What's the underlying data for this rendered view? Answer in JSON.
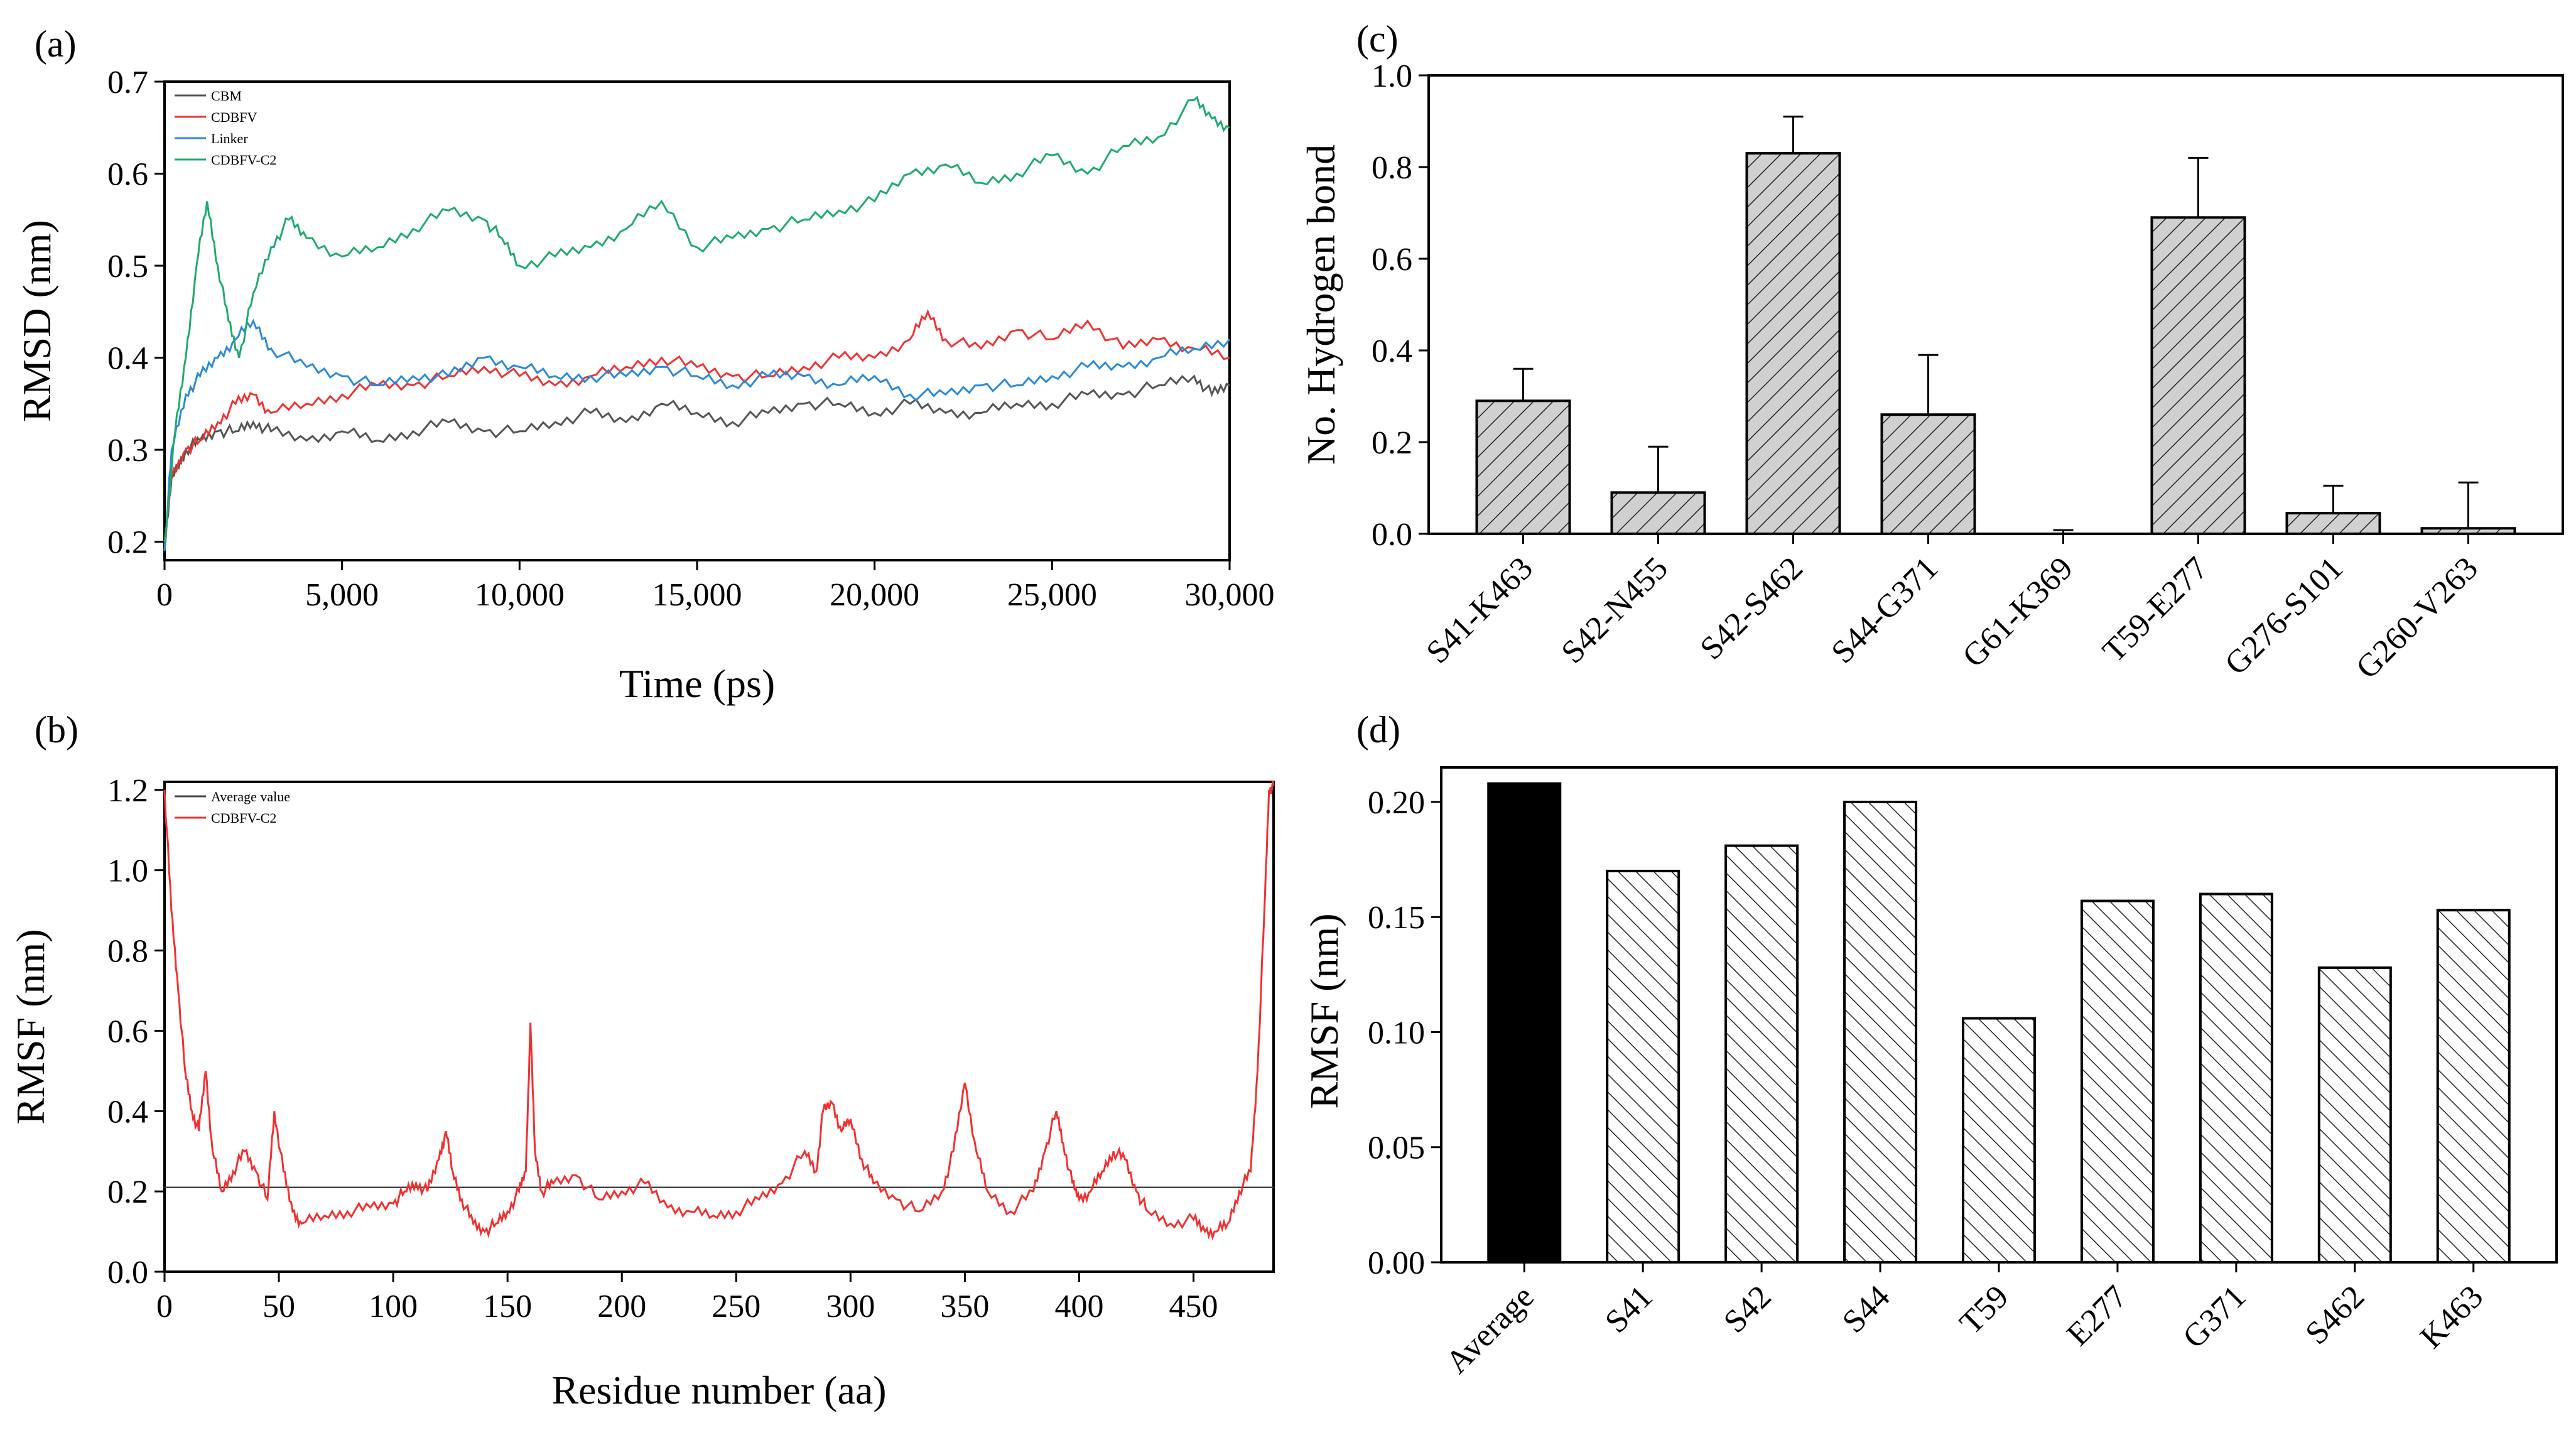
{
  "colors": {
    "cbm": "#555555",
    "cdbfv": "#ee3333",
    "linker": "#2a8ad8",
    "cdbfvc2": "#1faa6e",
    "avgline": "#444444",
    "rmsf": "#f03030",
    "black": "#000000"
  },
  "chart_data": [
    {
      "id": "a",
      "panel": "(a)",
      "type": "line",
      "xlabel": "Time (ps)",
      "ylabel": "RMSD (nm)",
      "xlim": [
        0,
        30000
      ],
      "ylim": [
        0.18,
        0.7
      ],
      "xticks": [
        0,
        5000,
        10000,
        15000,
        20000,
        25000,
        30000
      ],
      "xtick_labels": [
        "0",
        "5,000",
        "10,000",
        "15,000",
        "20,000",
        "25,000",
        "30,000"
      ],
      "yticks": [
        0.2,
        0.3,
        0.4,
        0.5,
        0.6,
        0.7
      ],
      "ytick_labels": [
        "0.2",
        "0.3",
        "0.4",
        "0.5",
        "0.6",
        "0.7"
      ],
      "legend_position": "top-left",
      "series": [
        {
          "name": "CBM",
          "color": "#555555",
          "x": [
            0,
            200,
            600,
            1000,
            1500,
            2000,
            2500,
            3000,
            4000,
            5000,
            6000,
            7000,
            8000,
            9000,
            10000,
            11000,
            12000,
            13000,
            14000,
            15000,
            16000,
            17000,
            18000,
            19000,
            20000,
            21000,
            22000,
            23000,
            24000,
            25000,
            26000,
            27000,
            28000,
            29000,
            29500,
            30000
          ],
          "y": [
            0.19,
            0.27,
            0.3,
            0.31,
            0.32,
            0.32,
            0.33,
            0.32,
            0.31,
            0.32,
            0.31,
            0.32,
            0.33,
            0.32,
            0.32,
            0.33,
            0.34,
            0.33,
            0.35,
            0.34,
            0.33,
            0.34,
            0.35,
            0.35,
            0.34,
            0.35,
            0.34,
            0.34,
            0.35,
            0.35,
            0.36,
            0.36,
            0.37,
            0.38,
            0.36,
            0.37
          ]
        },
        {
          "name": "CDBFV",
          "color": "#ee3333",
          "x": [
            0,
            200,
            600,
            1000,
            1500,
            2000,
            2500,
            3000,
            4000,
            5000,
            6000,
            7000,
            8000,
            9000,
            10000,
            11000,
            12000,
            13000,
            14000,
            15000,
            16000,
            17000,
            18000,
            19000,
            20000,
            21000,
            21500,
            22000,
            23000,
            24000,
            25000,
            26000,
            27000,
            28000,
            29000,
            30000
          ],
          "y": [
            0.2,
            0.27,
            0.3,
            0.31,
            0.33,
            0.35,
            0.36,
            0.34,
            0.35,
            0.36,
            0.37,
            0.37,
            0.38,
            0.39,
            0.38,
            0.37,
            0.38,
            0.39,
            0.4,
            0.39,
            0.38,
            0.38,
            0.39,
            0.4,
            0.4,
            0.42,
            0.45,
            0.42,
            0.41,
            0.43,
            0.42,
            0.44,
            0.41,
            0.42,
            0.41,
            0.4
          ]
        },
        {
          "name": "Linker",
          "color": "#2a8ad8",
          "x": [
            0,
            200,
            600,
            1000,
            1500,
            2000,
            2500,
            3000,
            4000,
            5000,
            6000,
            7000,
            8000,
            9000,
            10000,
            11000,
            12000,
            13000,
            14000,
            15000,
            16000,
            17000,
            18000,
            19000,
            20000,
            21000,
            22000,
            23000,
            24000,
            25000,
            26000,
            27000,
            28000,
            29000,
            30000
          ],
          "y": [
            0.19,
            0.3,
            0.36,
            0.38,
            0.4,
            0.42,
            0.44,
            0.41,
            0.39,
            0.38,
            0.37,
            0.38,
            0.38,
            0.4,
            0.39,
            0.38,
            0.38,
            0.38,
            0.39,
            0.38,
            0.37,
            0.38,
            0.38,
            0.37,
            0.38,
            0.36,
            0.36,
            0.37,
            0.37,
            0.38,
            0.39,
            0.39,
            0.4,
            0.41,
            0.42
          ]
        },
        {
          "name": "CDBFV-C2",
          "color": "#1faa6e",
          "x": [
            0,
            300,
            600,
            900,
            1200,
            1500,
            1800,
            2100,
            2500,
            3000,
            3500,
            4000,
            5000,
            6000,
            7000,
            8000,
            9000,
            9500,
            10000,
            11000,
            12000,
            13000,
            14000,
            15000,
            16000,
            17000,
            18000,
            19000,
            20000,
            21000,
            22000,
            23000,
            24000,
            25000,
            26000,
            27000,
            28000,
            29000,
            29500,
            30000
          ],
          "y": [
            0.2,
            0.32,
            0.4,
            0.5,
            0.57,
            0.5,
            0.44,
            0.4,
            0.47,
            0.52,
            0.55,
            0.53,
            0.51,
            0.52,
            0.54,
            0.56,
            0.55,
            0.53,
            0.5,
            0.51,
            0.52,
            0.54,
            0.57,
            0.52,
            0.53,
            0.54,
            0.55,
            0.56,
            0.57,
            0.6,
            0.61,
            0.59,
            0.6,
            0.62,
            0.6,
            0.63,
            0.64,
            0.68,
            0.66,
            0.65
          ]
        }
      ]
    },
    {
      "id": "b",
      "panel": "(b)",
      "type": "line",
      "xlabel": "Residue number (aa)",
      "ylabel": "RMSF (nm)",
      "xlim": [
        0,
        485
      ],
      "ylim": [
        0,
        1.22
      ],
      "xticks": [
        0,
        50,
        100,
        150,
        200,
        250,
        300,
        350,
        400,
        450
      ],
      "xtick_labels": [
        "0",
        "50",
        "100",
        "150",
        "200",
        "250",
        "300",
        "350",
        "400",
        "450"
      ],
      "yticks": [
        0,
        0.2,
        0.4,
        0.6,
        0.8,
        1.0,
        1.2
      ],
      "ytick_labels": [
        "0.0",
        "0.2",
        "0.4",
        "0.6",
        "0.8",
        "1.0",
        "1.2"
      ],
      "legend_position": "top-left",
      "average_value": 0.21,
      "series": [
        {
          "name": "Average value",
          "color": "#444444",
          "x": [
            0,
            485
          ],
          "y": [
            0.21,
            0.21
          ]
        },
        {
          "name": "CDBFV-C2",
          "color": "#f03030",
          "x": [
            0,
            3,
            6,
            9,
            12,
            15,
            18,
            21,
            25,
            30,
            35,
            40,
            45,
            48,
            52,
            56,
            60,
            70,
            80,
            90,
            100,
            105,
            110,
            115,
            120,
            123,
            126,
            130,
            135,
            140,
            145,
            150,
            155,
            158,
            160,
            162,
            165,
            170,
            180,
            190,
            200,
            210,
            220,
            230,
            240,
            250,
            260,
            270,
            280,
            285,
            288,
            292,
            296,
            300,
            305,
            310,
            320,
            330,
            340,
            345,
            350,
            355,
            360,
            370,
            380,
            385,
            390,
            393,
            397,
            400,
            405,
            410,
            415,
            420,
            425,
            430,
            440,
            450,
            455,
            460,
            465,
            470,
            475,
            478,
            481,
            483,
            485
          ],
          "y": [
            1.2,
            0.9,
            0.7,
            0.5,
            0.4,
            0.35,
            0.5,
            0.3,
            0.2,
            0.25,
            0.3,
            0.25,
            0.18,
            0.4,
            0.25,
            0.15,
            0.12,
            0.14,
            0.15,
            0.16,
            0.17,
            0.2,
            0.22,
            0.2,
            0.28,
            0.35,
            0.25,
            0.18,
            0.12,
            0.1,
            0.12,
            0.15,
            0.2,
            0.25,
            0.62,
            0.3,
            0.2,
            0.22,
            0.24,
            0.18,
            0.2,
            0.22,
            0.16,
            0.15,
            0.14,
            0.15,
            0.18,
            0.22,
            0.3,
            0.25,
            0.4,
            0.42,
            0.35,
            0.38,
            0.28,
            0.22,
            0.18,
            0.15,
            0.2,
            0.3,
            0.47,
            0.3,
            0.2,
            0.15,
            0.2,
            0.3,
            0.4,
            0.32,
            0.22,
            0.18,
            0.2,
            0.25,
            0.3,
            0.28,
            0.2,
            0.15,
            0.12,
            0.13,
            0.1,
            0.1,
            0.12,
            0.2,
            0.25,
            0.5,
            0.9,
            1.2,
            1.21
          ]
        }
      ]
    },
    {
      "id": "c",
      "panel": "(c)",
      "type": "bar",
      "xlabel": "",
      "ylabel": "No. Hydrogen bond",
      "ylim": [
        0,
        1.0
      ],
      "yticks": [
        0,
        0.2,
        0.4,
        0.6,
        0.8,
        1.0
      ],
      "ytick_labels": [
        "0.0",
        "0.2",
        "0.4",
        "0.6",
        "0.8",
        "1.0"
      ],
      "categories": [
        "S41-K463",
        "S42-N455",
        "S42-S462",
        "S44-G371",
        "G61-K369",
        "T59-E277",
        "G276-S101",
        "G260-V263"
      ],
      "values": [
        0.29,
        0.09,
        0.83,
        0.26,
        0.0,
        0.69,
        0.045,
        0.012
      ],
      "errors": [
        0.07,
        0.1,
        0.08,
        0.13,
        0.008,
        0.13,
        0.06,
        0.1
      ],
      "fill": "hatched gray"
    },
    {
      "id": "d",
      "panel": "(d)",
      "type": "bar",
      "xlabel": "",
      "ylabel": "RMSF (nm)",
      "ylim": [
        0,
        0.215
      ],
      "yticks": [
        0,
        0.05,
        0.1,
        0.15,
        0.2
      ],
      "ytick_labels": [
        "0.00",
        "0.05",
        "0.10",
        "0.15",
        "0.20"
      ],
      "categories": [
        "Average",
        "S41",
        "S42",
        "S44",
        "T59",
        "E277",
        "G371",
        "S462",
        "K463"
      ],
      "values": [
        0.208,
        0.17,
        0.181,
        0.2,
        0.106,
        0.157,
        0.16,
        0.128,
        0.153
      ],
      "fill": "first solid black, others hatched white"
    }
  ]
}
